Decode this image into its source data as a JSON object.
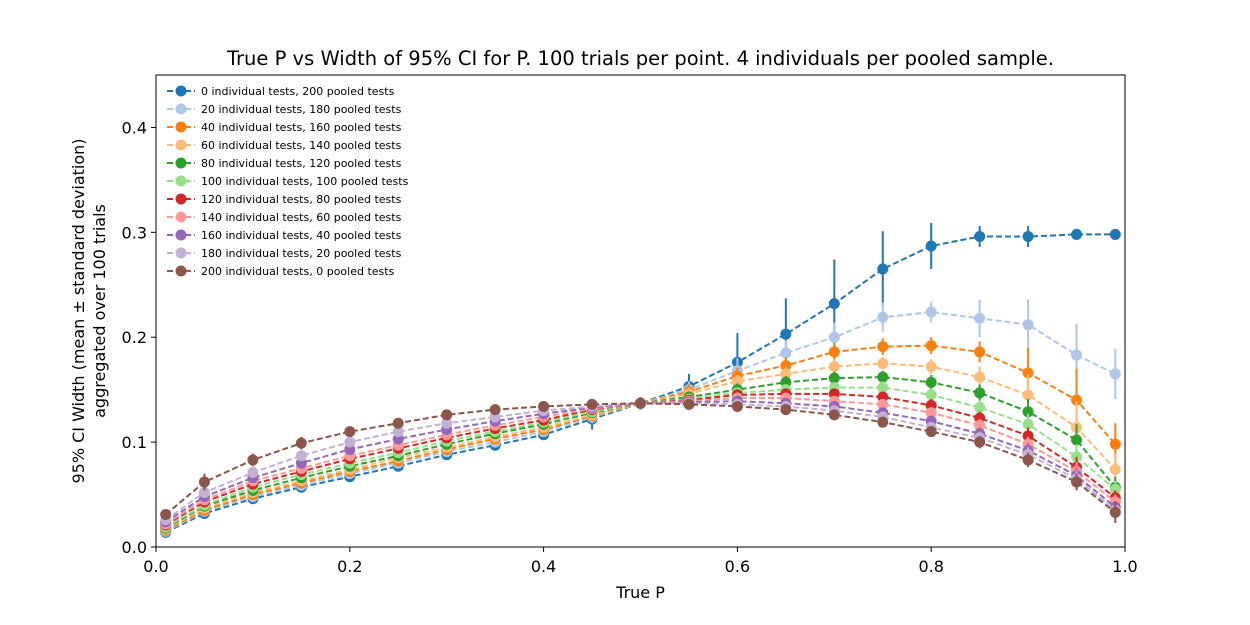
{
  "chart_data": {
    "type": "line",
    "title": "True P vs Width of 95% CI for P. 100 trials per point. 4 individuals per pooled sample.",
    "xlabel": "True P",
    "ylabel": "95% CI Width (mean ± standard deviation)",
    "ylabel2": "aggregated over 100 trials",
    "xlim": [
      0.0,
      1.0
    ],
    "ylim": [
      0.0,
      0.45
    ],
    "xticks": [
      "0.0",
      "0.2",
      "0.4",
      "0.6",
      "0.8",
      "1.0"
    ],
    "yticks": [
      "0.0",
      "0.1",
      "0.2",
      "0.3",
      "0.4"
    ],
    "grid": false,
    "legend_position": "top-left",
    "x": [
      0.01,
      0.05,
      0.1,
      0.15,
      0.2,
      0.25,
      0.3,
      0.35,
      0.4,
      0.45,
      0.5,
      0.55,
      0.6,
      0.65,
      0.7,
      0.75,
      0.8,
      0.85,
      0.9,
      0.95,
      0.99
    ],
    "series": [
      {
        "name": "0 individual tests, 200 pooled tests",
        "color": "#1f77b4",
        "values": [
          0.014,
          0.032,
          0.046,
          0.057,
          0.067,
          0.077,
          0.088,
          0.097,
          0.107,
          0.122,
          0.137,
          0.153,
          0.176,
          0.203,
          0.232,
          0.265,
          0.287,
          0.296,
          0.296,
          0.298,
          0.298
        ],
        "errors": [
          0.003,
          0.004,
          0.004,
          0.004,
          0.004,
          0.004,
          0.004,
          0.004,
          0.004,
          0.01,
          0.006,
          0.012,
          0.028,
          0.034,
          0.042,
          0.036,
          0.022,
          0.01,
          0.01,
          0.004,
          0.002
        ]
      },
      {
        "name": "20 individual tests, 180 pooled tests",
        "color": "#aec7e8",
        "values": [
          0.015,
          0.034,
          0.048,
          0.059,
          0.07,
          0.08,
          0.091,
          0.1,
          0.11,
          0.124,
          0.137,
          0.15,
          0.168,
          0.185,
          0.2,
          0.219,
          0.224,
          0.218,
          0.212,
          0.183,
          0.165
        ],
        "errors": [
          0.003,
          0.004,
          0.004,
          0.004,
          0.004,
          0.004,
          0.004,
          0.004,
          0.004,
          0.006,
          0.005,
          0.008,
          0.012,
          0.012,
          0.014,
          0.014,
          0.01,
          0.018,
          0.024,
          0.03,
          0.024
        ]
      },
      {
        "name": "40 individual tests, 160 pooled tests",
        "color": "#ff7f0e",
        "values": [
          0.016,
          0.035,
          0.05,
          0.061,
          0.072,
          0.082,
          0.093,
          0.103,
          0.112,
          0.125,
          0.137,
          0.148,
          0.163,
          0.173,
          0.186,
          0.191,
          0.192,
          0.186,
          0.166,
          0.14,
          0.098
        ],
        "errors": [
          0.003,
          0.004,
          0.004,
          0.004,
          0.004,
          0.004,
          0.004,
          0.004,
          0.004,
          0.005,
          0.005,
          0.007,
          0.008,
          0.008,
          0.009,
          0.008,
          0.008,
          0.01,
          0.024,
          0.03,
          0.02
        ]
      },
      {
        "name": "60 individual tests, 140 pooled tests",
        "color": "#ffbb78",
        "values": [
          0.017,
          0.037,
          0.052,
          0.063,
          0.074,
          0.085,
          0.095,
          0.105,
          0.114,
          0.126,
          0.137,
          0.146,
          0.158,
          0.165,
          0.172,
          0.175,
          0.172,
          0.162,
          0.145,
          0.114,
          0.074
        ],
        "errors": [
          0.003,
          0.004,
          0.004,
          0.004,
          0.004,
          0.004,
          0.004,
          0.004,
          0.004,
          0.005,
          0.005,
          0.006,
          0.006,
          0.007,
          0.007,
          0.006,
          0.007,
          0.01,
          0.02,
          0.025,
          0.015
        ]
      },
      {
        "name": "80 individual tests, 120 pooled tests",
        "color": "#2ca02c",
        "values": [
          0.018,
          0.039,
          0.054,
          0.066,
          0.077,
          0.087,
          0.098,
          0.108,
          0.117,
          0.128,
          0.137,
          0.143,
          0.15,
          0.157,
          0.161,
          0.162,
          0.157,
          0.147,
          0.129,
          0.102,
          0.057
        ],
        "errors": [
          0.003,
          0.004,
          0.004,
          0.004,
          0.004,
          0.004,
          0.004,
          0.004,
          0.004,
          0.005,
          0.005,
          0.005,
          0.006,
          0.006,
          0.006,
          0.006,
          0.007,
          0.008,
          0.012,
          0.015,
          0.01
        ]
      },
      {
        "name": "100 individual tests, 100 pooled tests",
        "color": "#98df8a",
        "values": [
          0.019,
          0.04,
          0.057,
          0.069,
          0.08,
          0.09,
          0.101,
          0.11,
          0.119,
          0.129,
          0.137,
          0.141,
          0.147,
          0.15,
          0.152,
          0.152,
          0.145,
          0.133,
          0.117,
          0.086,
          0.055
        ],
        "errors": [
          0.003,
          0.004,
          0.004,
          0.004,
          0.004,
          0.004,
          0.004,
          0.004,
          0.004,
          0.005,
          0.005,
          0.005,
          0.005,
          0.005,
          0.005,
          0.006,
          0.006,
          0.007,
          0.01,
          0.012,
          0.008
        ]
      },
      {
        "name": "120 individual tests, 80 pooled tests",
        "color": "#d62728",
        "values": [
          0.021,
          0.043,
          0.06,
          0.072,
          0.084,
          0.094,
          0.104,
          0.113,
          0.121,
          0.131,
          0.137,
          0.14,
          0.145,
          0.146,
          0.146,
          0.143,
          0.135,
          0.123,
          0.106,
          0.076,
          0.047
        ],
        "errors": [
          0.003,
          0.004,
          0.004,
          0.004,
          0.004,
          0.004,
          0.004,
          0.004,
          0.004,
          0.004,
          0.005,
          0.005,
          0.005,
          0.005,
          0.005,
          0.005,
          0.006,
          0.006,
          0.008,
          0.01,
          0.007
        ]
      },
      {
        "name": "140 individual tests, 60 pooled tests",
        "color": "#ff9896",
        "values": [
          0.022,
          0.045,
          0.063,
          0.075,
          0.087,
          0.097,
          0.107,
          0.116,
          0.124,
          0.132,
          0.137,
          0.139,
          0.142,
          0.142,
          0.139,
          0.136,
          0.128,
          0.116,
          0.098,
          0.072,
          0.043
        ],
        "errors": [
          0.003,
          0.004,
          0.004,
          0.004,
          0.004,
          0.004,
          0.004,
          0.004,
          0.004,
          0.004,
          0.005,
          0.005,
          0.005,
          0.005,
          0.005,
          0.005,
          0.005,
          0.006,
          0.007,
          0.009,
          0.007
        ]
      },
      {
        "name": "160 individual tests, 40 pooled tests",
        "color": "#9467bd",
        "values": [
          0.024,
          0.048,
          0.066,
          0.08,
          0.093,
          0.103,
          0.112,
          0.12,
          0.127,
          0.133,
          0.137,
          0.138,
          0.139,
          0.137,
          0.134,
          0.128,
          0.12,
          0.108,
          0.092,
          0.068,
          0.038
        ],
        "errors": [
          0.003,
          0.004,
          0.004,
          0.004,
          0.004,
          0.004,
          0.004,
          0.004,
          0.004,
          0.004,
          0.005,
          0.005,
          0.005,
          0.005,
          0.005,
          0.005,
          0.005,
          0.006,
          0.007,
          0.008,
          0.006
        ]
      },
      {
        "name": "180 individual tests, 20 pooled tests",
        "color": "#c5b0d5",
        "values": [
          0.026,
          0.052,
          0.071,
          0.087,
          0.1,
          0.11,
          0.118,
          0.124,
          0.13,
          0.134,
          0.137,
          0.137,
          0.136,
          0.134,
          0.13,
          0.124,
          0.114,
          0.104,
          0.088,
          0.065,
          0.035
        ],
        "errors": [
          0.003,
          0.004,
          0.004,
          0.004,
          0.004,
          0.004,
          0.004,
          0.004,
          0.004,
          0.004,
          0.005,
          0.005,
          0.005,
          0.005,
          0.005,
          0.005,
          0.005,
          0.006,
          0.007,
          0.008,
          0.006
        ]
      },
      {
        "name": "200 individual tests, 0 pooled tests",
        "color": "#8c564b",
        "values": [
          0.031,
          0.062,
          0.083,
          0.099,
          0.11,
          0.118,
          0.126,
          0.131,
          0.134,
          0.136,
          0.137,
          0.136,
          0.134,
          0.131,
          0.126,
          0.119,
          0.11,
          0.1,
          0.083,
          0.062,
          0.033
        ],
        "errors": [
          0.004,
          0.008,
          0.006,
          0.006,
          0.005,
          0.005,
          0.005,
          0.005,
          0.004,
          0.004,
          0.005,
          0.005,
          0.005,
          0.005,
          0.005,
          0.005,
          0.005,
          0.006,
          0.007,
          0.008,
          0.01
        ]
      }
    ]
  }
}
